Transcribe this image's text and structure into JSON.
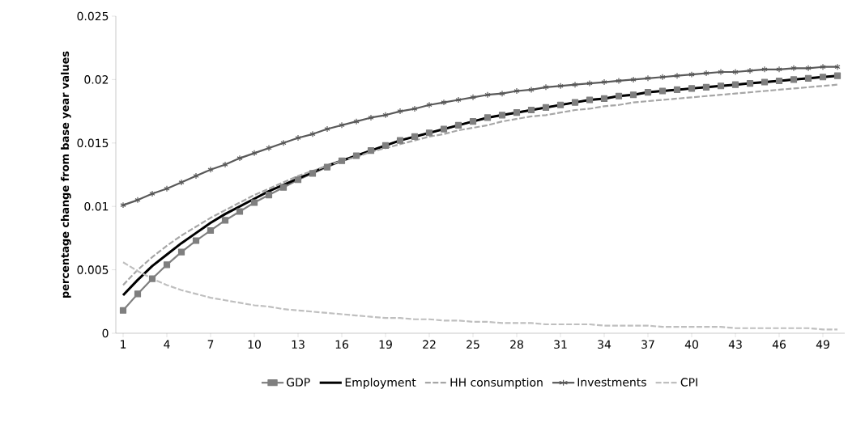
{
  "chart_data": {
    "type": "line",
    "ylabel": "percentage change from base year values",
    "categories": [
      "1",
      null,
      null,
      "4",
      null,
      null,
      "7",
      null,
      null,
      "10",
      null,
      null,
      "13",
      null,
      null,
      "16",
      null,
      null,
      "19",
      null,
      null,
      "22",
      null,
      null,
      "25",
      null,
      null,
      "28",
      null,
      null,
      "31",
      null,
      null,
      "34",
      null,
      null,
      "37",
      null,
      null,
      "40",
      null,
      null,
      "43",
      null,
      null,
      "46",
      null,
      null,
      "49",
      null
    ],
    "ylim": [
      0,
      0.025
    ],
    "yticks": [
      0,
      0.005,
      0.01,
      0.015,
      0.02,
      0.025
    ],
    "legend": "bottom",
    "grid": false,
    "series": [
      {
        "name": "GDP",
        "color": "#7f7f7f",
        "marker": "square",
        "line_style": "solid",
        "values": [
          0.0018,
          0.0031,
          0.0043,
          0.0054,
          0.0064,
          0.0073,
          0.0081,
          0.0089,
          0.0096,
          0.0103,
          0.0109,
          0.0115,
          0.0121,
          0.0126,
          0.0131,
          0.0136,
          0.014,
          0.0144,
          0.0148,
          0.0152,
          0.0155,
          0.0158,
          0.0161,
          0.0164,
          0.0167,
          0.017,
          0.0172,
          0.0174,
          0.0176,
          0.0178,
          0.018,
          0.0182,
          0.0184,
          0.0185,
          0.0187,
          0.0188,
          0.019,
          0.0191,
          0.0192,
          0.0193,
          0.0194,
          0.0195,
          0.0196,
          0.0197,
          0.0198,
          0.0199,
          0.02,
          0.0201,
          0.0202,
          0.0203
        ]
      },
      {
        "name": "Employment",
        "color": "#000000",
        "marker": "none",
        "line_style": "solid",
        "values": [
          0.003,
          0.0042,
          0.0053,
          0.0062,
          0.0071,
          0.0079,
          0.0087,
          0.0094,
          0.01,
          0.0106,
          0.0112,
          0.0117,
          0.0122,
          0.0127,
          0.0132,
          0.0136,
          0.014,
          0.0144,
          0.0148,
          0.0152,
          0.0155,
          0.0158,
          0.0161,
          0.0164,
          0.0167,
          0.017,
          0.0172,
          0.0174,
          0.0176,
          0.0178,
          0.018,
          0.0182,
          0.0184,
          0.0185,
          0.0187,
          0.0188,
          0.019,
          0.0191,
          0.0192,
          0.0193,
          0.0194,
          0.0195,
          0.0196,
          0.0197,
          0.0198,
          0.0199,
          0.02,
          0.0201,
          0.0202,
          0.0203
        ]
      },
      {
        "name": "HH consumption",
        "color": "#a6a6a6",
        "marker": "none",
        "line_style": "dashed",
        "values": [
          0.0038,
          0.005,
          0.006,
          0.0069,
          0.0077,
          0.0084,
          0.0091,
          0.0097,
          0.0103,
          0.0109,
          0.0114,
          0.0119,
          0.0124,
          0.0128,
          0.0132,
          0.0136,
          0.0139,
          0.0143,
          0.0146,
          0.0149,
          0.0152,
          0.0155,
          0.0157,
          0.016,
          0.0162,
          0.0164,
          0.0167,
          0.0169,
          0.0171,
          0.0172,
          0.0174,
          0.0176,
          0.0177,
          0.0179,
          0.018,
          0.0182,
          0.0183,
          0.0184,
          0.0185,
          0.0186,
          0.0187,
          0.0188,
          0.0189,
          0.019,
          0.0191,
          0.0192,
          0.0193,
          0.0194,
          0.0195,
          0.0196
        ]
      },
      {
        "name": "Investments",
        "color": "#595959",
        "marker": "cross",
        "line_style": "solid",
        "values": [
          0.0101,
          0.0105,
          0.011,
          0.0114,
          0.0119,
          0.0124,
          0.0129,
          0.0133,
          0.0138,
          0.0142,
          0.0146,
          0.015,
          0.0154,
          0.0157,
          0.0161,
          0.0164,
          0.0167,
          0.017,
          0.0172,
          0.0175,
          0.0177,
          0.018,
          0.0182,
          0.0184,
          0.0186,
          0.0188,
          0.0189,
          0.0191,
          0.0192,
          0.0194,
          0.0195,
          0.0196,
          0.0197,
          0.0198,
          0.0199,
          0.02,
          0.0201,
          0.0202,
          0.0203,
          0.0204,
          0.0205,
          0.0206,
          0.0206,
          0.0207,
          0.0208,
          0.0208,
          0.0209,
          0.0209,
          0.021,
          0.021
        ]
      },
      {
        "name": "CPI",
        "color": "#bfbfbf",
        "marker": "none",
        "line_style": "dashed",
        "values": [
          0.0056,
          0.0049,
          0.0043,
          0.0038,
          0.0034,
          0.0031,
          0.0028,
          0.0026,
          0.0024,
          0.0022,
          0.0021,
          0.0019,
          0.0018,
          0.0017,
          0.0016,
          0.0015,
          0.0014,
          0.0013,
          0.0012,
          0.0012,
          0.0011,
          0.0011,
          0.001,
          0.001,
          0.0009,
          0.0009,
          0.0008,
          0.0008,
          0.0008,
          0.0007,
          0.0007,
          0.0007,
          0.0007,
          0.0006,
          0.0006,
          0.0006,
          0.0006,
          0.0005,
          0.0005,
          0.0005,
          0.0005,
          0.0005,
          0.0004,
          0.0004,
          0.0004,
          0.0004,
          0.0004,
          0.0004,
          0.0003,
          0.0003
        ]
      }
    ]
  }
}
